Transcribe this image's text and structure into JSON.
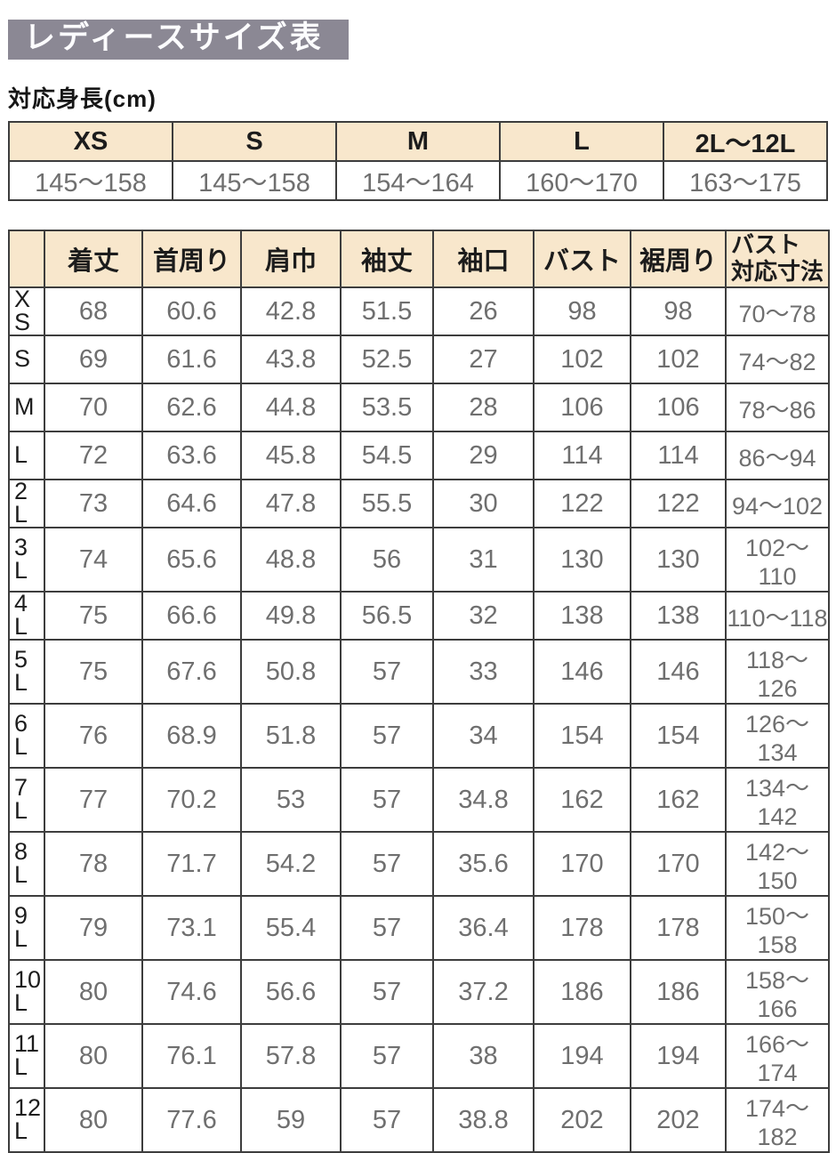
{
  "page": {
    "title": "レディースサイズ表",
    "height_label": "対応身長(cm)"
  },
  "colors": {
    "title_bar_bg": "#8b8894",
    "title_text": "#fcfcfe",
    "header_bg": "#f8e7cc",
    "border": "#3d3d3d",
    "data_text": "#6f6f6f",
    "header_text": "#1c1c1c"
  },
  "height_table": {
    "columns": [
      "XS",
      "S",
      "M",
      "L",
      "2L～12L"
    ],
    "values": [
      "145～158",
      "145～158",
      "154～164",
      "160～170",
      "163～175"
    ]
  },
  "size_table": {
    "columns": [
      "着丈",
      "首周り",
      "肩巾",
      "袖丈",
      "袖口",
      "バスト",
      "裾周り",
      "バスト対応寸法"
    ],
    "last_column_lines": [
      "バスト",
      "対応寸法"
    ],
    "rows": [
      {
        "size": "XS",
        "size_lines": [
          "X",
          "S"
        ],
        "values": [
          "68",
          "60.6",
          "42.8",
          "51.5",
          "26",
          "98",
          "98",
          "70～78"
        ]
      },
      {
        "size": "S",
        "values": [
          "69",
          "61.6",
          "43.8",
          "52.5",
          "27",
          "102",
          "102",
          "74～82"
        ]
      },
      {
        "size": "M",
        "values": [
          "70",
          "62.6",
          "44.8",
          "53.5",
          "28",
          "106",
          "106",
          "78～86"
        ]
      },
      {
        "size": "L",
        "values": [
          "72",
          "63.6",
          "45.8",
          "54.5",
          "29",
          "114",
          "114",
          "86～94"
        ]
      },
      {
        "size": "2L",
        "size_lines": [
          "2",
          "L"
        ],
        "values": [
          "73",
          "64.6",
          "47.8",
          "55.5",
          "30",
          "122",
          "122",
          "94～102"
        ]
      },
      {
        "size": "3L",
        "size_lines": [
          "3",
          "L"
        ],
        "values": [
          "74",
          "65.6",
          "48.8",
          "56",
          "31",
          "130",
          "130",
          "102～110"
        ]
      },
      {
        "size": "4L",
        "size_lines": [
          "4",
          "L"
        ],
        "values": [
          "75",
          "66.6",
          "49.8",
          "56.5",
          "32",
          "138",
          "138",
          "110～118"
        ]
      },
      {
        "size": "5L",
        "size_lines": [
          "5",
          "L"
        ],
        "values": [
          "75",
          "67.6",
          "50.8",
          "57",
          "33",
          "146",
          "146",
          "118～126"
        ]
      },
      {
        "size": "6L",
        "size_lines": [
          "6",
          "L"
        ],
        "values": [
          "76",
          "68.9",
          "51.8",
          "57",
          "34",
          "154",
          "154",
          "126～134"
        ]
      },
      {
        "size": "7L",
        "size_lines": [
          "7",
          "L"
        ],
        "values": [
          "77",
          "70.2",
          "53",
          "57",
          "34.8",
          "162",
          "162",
          "134～142"
        ]
      },
      {
        "size": "8L",
        "size_lines": [
          "8",
          "L"
        ],
        "values": [
          "78",
          "71.7",
          "54.2",
          "57",
          "35.6",
          "170",
          "170",
          "142～150"
        ]
      },
      {
        "size": "9L",
        "size_lines": [
          "9",
          "L"
        ],
        "values": [
          "79",
          "73.1",
          "55.4",
          "57",
          "36.4",
          "178",
          "178",
          "150～158"
        ]
      },
      {
        "size": "10L",
        "size_lines": [
          "10",
          "L"
        ],
        "values": [
          "80",
          "74.6",
          "56.6",
          "57",
          "37.2",
          "186",
          "186",
          "158～166"
        ]
      },
      {
        "size": "11L",
        "size_lines": [
          "11",
          "L"
        ],
        "values": [
          "80",
          "76.1",
          "57.8",
          "57",
          "38",
          "194",
          "194",
          "166～174"
        ]
      },
      {
        "size": "12L",
        "size_lines": [
          "12",
          "L"
        ],
        "values": [
          "80",
          "77.6",
          "59",
          "57",
          "38.8",
          "202",
          "202",
          "174～182"
        ]
      }
    ]
  }
}
